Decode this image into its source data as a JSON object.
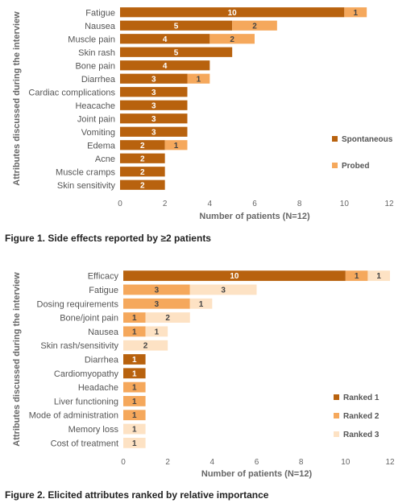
{
  "chart_data": [
    {
      "type": "bar",
      "orientation": "horizontal",
      "stacked": true,
      "caption": "Figure 1. Side effects reported by ≥2 patients",
      "xlabel": "Number of patients (N=12)",
      "ylabel": "Attributes discussed during the interview",
      "xlim": [
        0,
        12
      ],
      "xticks": [
        "0",
        "2",
        "4",
        "6",
        "8",
        "10",
        "12"
      ],
      "grid": false,
      "legend_position": "right",
      "categories": [
        "Fatigue",
        "Nausea",
        "Muscle pain",
        "Skin rash",
        "Bone pain",
        "Diarrhea",
        "Cardiac complications",
        "Heacache",
        "Joint pain",
        "Vomiting",
        "Edema",
        "Acne",
        "Muscle cramps",
        "Skin sensitivity"
      ],
      "series": [
        {
          "name": "Spontaneous",
          "color": "#b8620e",
          "values": [
            10,
            5,
            4,
            5,
            4,
            3,
            3,
            3,
            3,
            3,
            2,
            2,
            2,
            2
          ]
        },
        {
          "name": "Probed",
          "color": "#f5a85c",
          "values": [
            1,
            2,
            2,
            0,
            0,
            1,
            0,
            0,
            0,
            0,
            1,
            0,
            0,
            0
          ]
        }
      ]
    },
    {
      "type": "bar",
      "orientation": "horizontal",
      "stacked": true,
      "caption": "Figure 2. Elicited attributes ranked by relative importance",
      "xlabel": "Number of patients (N=12)",
      "ylabel": "Attributes discussed during the interview",
      "xlim": [
        0,
        12
      ],
      "xticks": [
        "0",
        "2",
        "4",
        "6",
        "8",
        "10",
        "12"
      ],
      "grid": false,
      "legend_position": "right",
      "categories": [
        "Efficacy",
        "Fatigue",
        "Dosing requirements",
        "Bone/joint pain",
        "Nausea",
        "Skin rash/sensitivity",
        "Diarrhea",
        "Cardiomyopathy",
        "Headache",
        "Liver functioning",
        "Mode of administration",
        "Memory loss",
        "Cost of treatment"
      ],
      "series": [
        {
          "name": "Ranked 1",
          "color": "#b8620e",
          "values": [
            10,
            0,
            0,
            0,
            0,
            0,
            1,
            1,
            0,
            0,
            0,
            0,
            0
          ]
        },
        {
          "name": "Ranked 2",
          "color": "#f5a85c",
          "values": [
            1,
            3,
            3,
            1,
            1,
            0,
            0,
            0,
            1,
            1,
            1,
            0,
            0
          ]
        },
        {
          "name": "Ranked 3",
          "color": "#fde2c4",
          "values": [
            1,
            3,
            1,
            2,
            1,
            2,
            0,
            0,
            0,
            0,
            0,
            1,
            1
          ]
        }
      ]
    }
  ]
}
